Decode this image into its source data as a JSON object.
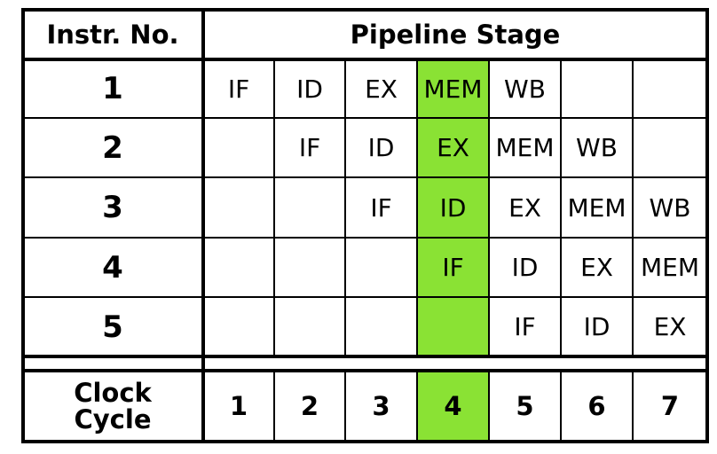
{
  "header": {
    "instr_label": "Instr. No.",
    "stage_label": "Pipeline Stage"
  },
  "highlight_color": "#8ae234",
  "highlight_cycle": 4,
  "instructions": [
    {
      "number": "1",
      "stages": [
        "IF",
        "ID",
        "EX",
        "MEM",
        "WB",
        "",
        ""
      ]
    },
    {
      "number": "2",
      "stages": [
        "",
        "IF",
        "ID",
        "EX",
        "MEM",
        "WB",
        ""
      ]
    },
    {
      "number": "3",
      "stages": [
        "",
        "",
        "IF",
        "ID",
        "EX",
        "MEM",
        "WB"
      ]
    },
    {
      "number": "4",
      "stages": [
        "",
        "",
        "",
        "IF",
        "ID",
        "EX",
        "MEM"
      ]
    },
    {
      "number": "5",
      "stages": [
        "",
        "",
        "",
        "",
        "IF",
        "ID",
        "EX"
      ]
    }
  ],
  "footer": {
    "clock_label_line1": "Clock",
    "clock_label_line2": "Cycle",
    "cycles": [
      "1",
      "2",
      "3",
      "4",
      "5",
      "6",
      "7"
    ]
  }
}
